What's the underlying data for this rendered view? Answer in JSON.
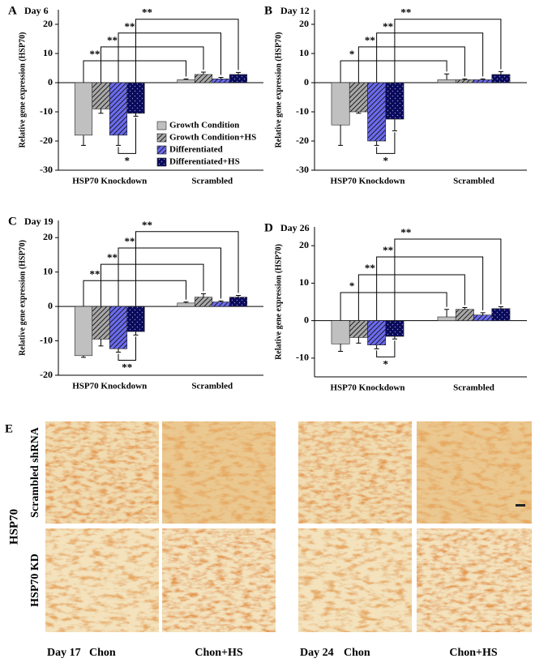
{
  "chart_data": [
    {
      "type": "bar",
      "label": "A",
      "title": "Day 6",
      "y_label": "Relative gene expression (HSP70)",
      "categories": [
        "HSP70 Knockdown",
        "Scrambled"
      ],
      "ylim": [
        -30,
        25
      ],
      "yticks": [
        -30,
        -20,
        -10,
        0,
        10,
        20
      ],
      "legend": true,
      "series": [
        {
          "name": "Growth Condition",
          "color": "#c0c0c0",
          "pattern": "none",
          "values": [
            -18,
            1
          ],
          "errors": [
            3.5,
            0.3
          ]
        },
        {
          "name": "Growth Condition+HS",
          "color": "#a8a8a8",
          "pattern": "hatch",
          "values": [
            -9,
            2.8
          ],
          "errors": [
            1.5,
            0.8
          ]
        },
        {
          "name": "Differentiated",
          "color": "#6b6bef",
          "pattern": "hatch",
          "values": [
            -18,
            1.3
          ],
          "errors": [
            3.5,
            0.5
          ]
        },
        {
          "name": "Differentiated+HS",
          "color": "#0a0a5c",
          "pattern": "dots",
          "values": [
            -10.5,
            2.8
          ],
          "errors": [
            1,
            0.7
          ]
        }
      ],
      "annotations": [
        "**",
        "**",
        "**",
        "**"
      ],
      "annotation_within": "*"
    },
    {
      "type": "bar",
      "label": "B",
      "title": "Day 12",
      "y_label": "Relative gene expression (HSP70)",
      "categories": [
        "HSP70 Knockdown",
        "Scrambled"
      ],
      "ylim": [
        -30,
        25
      ],
      "yticks": [
        -30,
        -20,
        -10,
        0,
        10,
        20
      ],
      "legend": false,
      "series": [
        {
          "color": "#c0c0c0",
          "pattern": "none",
          "values": [
            -14.5,
            1
          ],
          "errors": [
            7,
            2
          ]
        },
        {
          "color": "#a8a8a8",
          "pattern": "hatch",
          "values": [
            -10,
            1
          ],
          "errors": [
            0.5,
            0.3
          ]
        },
        {
          "color": "#6b6bef",
          "pattern": "hatch",
          "values": [
            -20,
            1
          ],
          "errors": [
            1.5,
            0.3
          ]
        },
        {
          "color": "#0a0a5c",
          "pattern": "dots",
          "values": [
            -12.5,
            2.8
          ],
          "errors": [
            4,
            1
          ]
        }
      ],
      "annotations": [
        "*",
        "**",
        "**",
        "**"
      ],
      "annotation_within": "*"
    },
    {
      "type": "bar",
      "label": "C",
      "title": "Day 19",
      "y_label": "Relative gene expression (HSP70)",
      "categories": [
        "HSP70 Knockdown",
        "Scrambled"
      ],
      "ylim": [
        -20,
        25
      ],
      "yticks": [
        -20,
        -10,
        0,
        10,
        20
      ],
      "legend": false,
      "series": [
        {
          "color": "#c0c0c0",
          "pattern": "none",
          "values": [
            -14.3,
            1
          ],
          "errors": [
            0.5,
            0.3
          ]
        },
        {
          "color": "#a8a8a8",
          "pattern": "hatch",
          "values": [
            -9.5,
            2.7
          ],
          "errors": [
            2,
            1
          ]
        },
        {
          "color": "#6b6bef",
          "pattern": "hatch",
          "values": [
            -12.3,
            1.3
          ],
          "errors": [
            1,
            0.3
          ]
        },
        {
          "color": "#0a0a5c",
          "pattern": "dots",
          "values": [
            -7.3,
            2.7
          ],
          "errors": [
            1,
            0.5
          ]
        }
      ],
      "annotations": [
        "**",
        "**",
        "**",
        "**"
      ],
      "annotation_within": "**"
    },
    {
      "type": "bar",
      "label": "D",
      "title": "Day 26",
      "y_label": "Relative gene expression (HSP70)",
      "categories": [
        "HSP70 Knockdown",
        "Scrambled"
      ],
      "ylim": [
        -15,
        25
      ],
      "yticks": [
        -10,
        0,
        10,
        20
      ],
      "legend": false,
      "series": [
        {
          "color": "#c0c0c0",
          "pattern": "none",
          "values": [
            -6.2,
            1
          ],
          "errors": [
            2,
            2
          ]
        },
        {
          "color": "#a8a8a8",
          "pattern": "hatch",
          "values": [
            -4.5,
            3
          ],
          "errors": [
            1.5,
            0.5
          ]
        },
        {
          "color": "#6b6bef",
          "pattern": "hatch",
          "values": [
            -6.5,
            1.5
          ],
          "errors": [
            1,
            0.6
          ]
        },
        {
          "color": "#0a0a5c",
          "pattern": "dots",
          "values": [
            -4.2,
            3.2
          ],
          "errors": [
            0.7,
            0.5
          ]
        }
      ],
      "annotations": [
        "*",
        "**",
        "**",
        "**"
      ],
      "annotation_within": "*"
    }
  ],
  "panel_e": {
    "label": "E",
    "marker": "HSP70",
    "rows": [
      "Scrambled shRNA",
      "HSP70 KD"
    ],
    "columns": [
      {
        "day": "Day 17",
        "conditions": [
          "Chon",
          "Chon+HS"
        ]
      },
      {
        "day": "Day 24",
        "conditions": [
          "Chon",
          "Chon+HS"
        ]
      }
    ]
  }
}
